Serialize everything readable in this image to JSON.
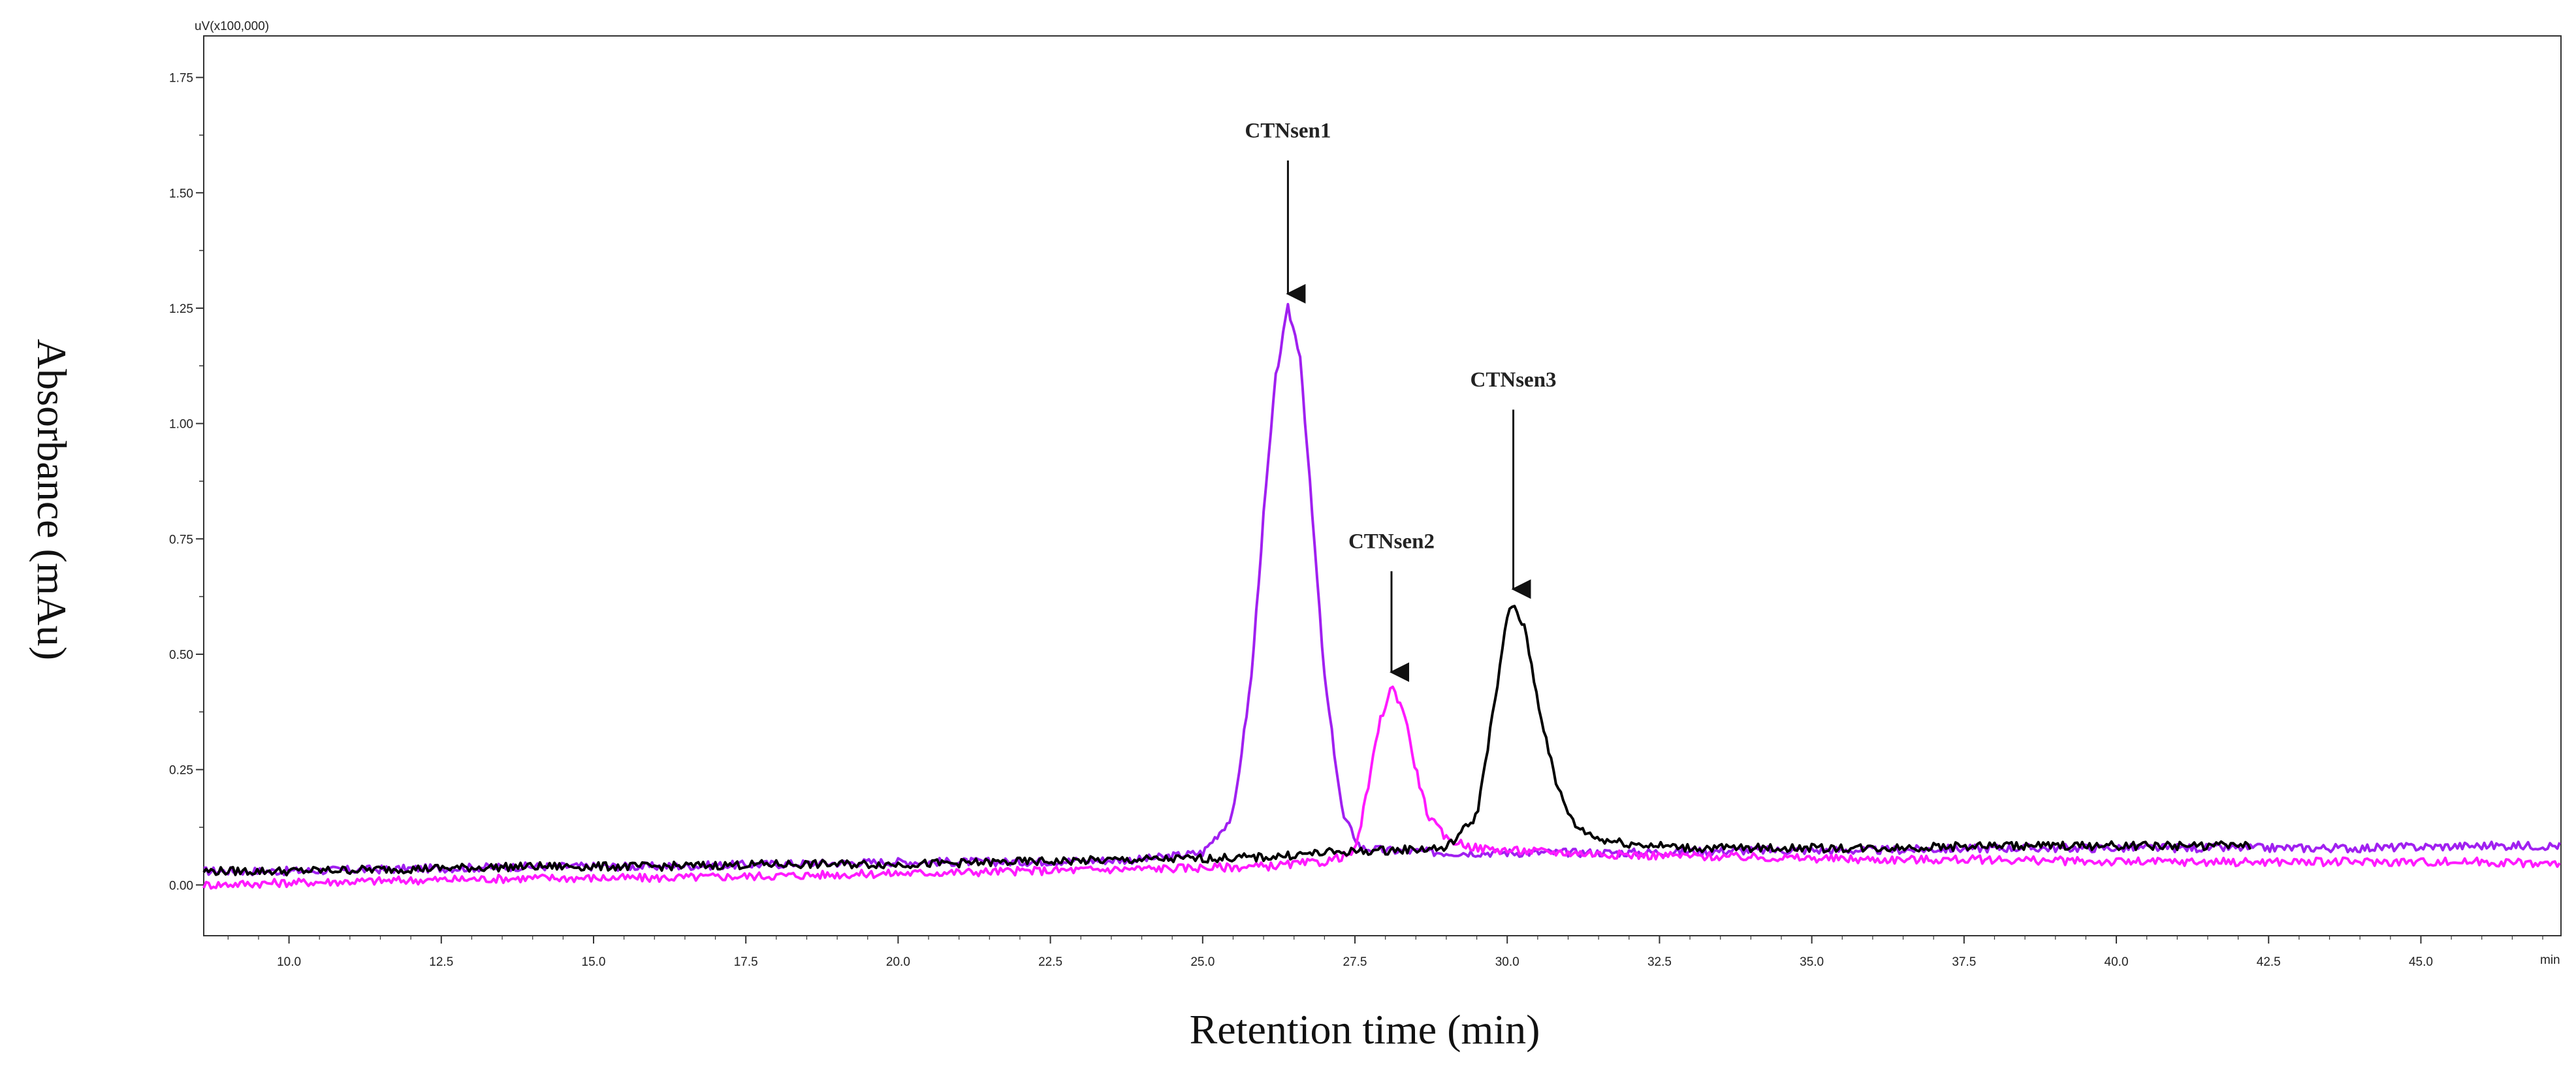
{
  "chart_data": {
    "type": "line",
    "title": "",
    "xlabel": "Retention time (min)",
    "ylabel": "Absorbance (mAu)",
    "y_unit_label": "uV(x100,000)",
    "x_unit_label": "min",
    "xlim": [
      8.6,
      47.3
    ],
    "ylim": [
      -0.11,
      1.84
    ],
    "x_ticks": [
      "10.0",
      "12.5",
      "15.0",
      "17.5",
      "20.0",
      "22.5",
      "25.0",
      "27.5",
      "30.0",
      "32.5",
      "35.0",
      "37.5",
      "40.0",
      "42.5",
      "45.0"
    ],
    "y_ticks": [
      "0.00",
      "0.25",
      "0.50",
      "0.75",
      "1.00",
      "1.25",
      "1.50",
      "1.75"
    ],
    "grid": false,
    "series": [
      {
        "name": "CTNsen1",
        "color": "#a020f0",
        "x": [
          8.6,
          10,
          12,
          14,
          16,
          18,
          20,
          22,
          24,
          25,
          25.5,
          25.8,
          26.0,
          26.2,
          26.4,
          26.6,
          26.8,
          27.0,
          27.3,
          27.6,
          28,
          29,
          30,
          32,
          34,
          36,
          38,
          40,
          42,
          44,
          46,
          47.3
        ],
        "y": [
          0.03,
          0.03,
          0.035,
          0.04,
          0.04,
          0.045,
          0.05,
          0.05,
          0.055,
          0.07,
          0.15,
          0.45,
          0.8,
          1.1,
          1.25,
          1.15,
          0.8,
          0.45,
          0.15,
          0.08,
          0.075,
          0.07,
          0.07,
          0.07,
          0.075,
          0.075,
          0.08,
          0.08,
          0.08,
          0.08,
          0.085,
          0.085
        ]
      },
      {
        "name": "CTNsen2",
        "color": "#ff1aff",
        "x": [
          8.6,
          10,
          12,
          14,
          16,
          18,
          20,
          22,
          24,
          26,
          27,
          27.5,
          27.7,
          27.9,
          28.1,
          28.3,
          28.5,
          28.7,
          29.0,
          29.5,
          30,
          32,
          34,
          36,
          38,
          40,
          42,
          44,
          46,
          47.3
        ],
        "y": [
          0.0,
          0.005,
          0.01,
          0.015,
          0.015,
          0.02,
          0.025,
          0.03,
          0.035,
          0.04,
          0.05,
          0.07,
          0.2,
          0.35,
          0.43,
          0.38,
          0.25,
          0.15,
          0.1,
          0.08,
          0.075,
          0.065,
          0.06,
          0.055,
          0.055,
          0.05,
          0.05,
          0.05,
          0.05,
          0.045
        ]
      },
      {
        "name": "CTNsen3",
        "color": "#000000",
        "x": [
          8.6,
          10,
          12,
          14,
          16,
          18,
          20,
          22,
          24,
          26,
          27,
          28,
          29,
          29.5,
          29.8,
          30.0,
          30.1,
          30.3,
          30.5,
          30.8,
          31.1,
          31.5,
          32,
          33,
          34,
          36,
          38,
          40,
          42.2
        ],
        "y": [
          0.03,
          0.03,
          0.035,
          0.04,
          0.04,
          0.045,
          0.045,
          0.05,
          0.055,
          0.06,
          0.07,
          0.075,
          0.08,
          0.15,
          0.4,
          0.58,
          0.61,
          0.55,
          0.4,
          0.22,
          0.13,
          0.1,
          0.09,
          0.08,
          0.08,
          0.08,
          0.085,
          0.085,
          0.085
        ]
      }
    ],
    "annotations": [
      {
        "text": "CTNsen1",
        "x": 26.4,
        "y": 1.25,
        "arrow_top": 1.57,
        "label_y": 1.62
      },
      {
        "text": "CTNsen2",
        "x": 28.1,
        "y": 0.43,
        "arrow_top": 0.68,
        "label_y": 0.73
      },
      {
        "text": "CTNsen3",
        "x": 30.1,
        "y": 0.61,
        "arrow_top": 1.03,
        "label_y": 1.08
      }
    ]
  }
}
